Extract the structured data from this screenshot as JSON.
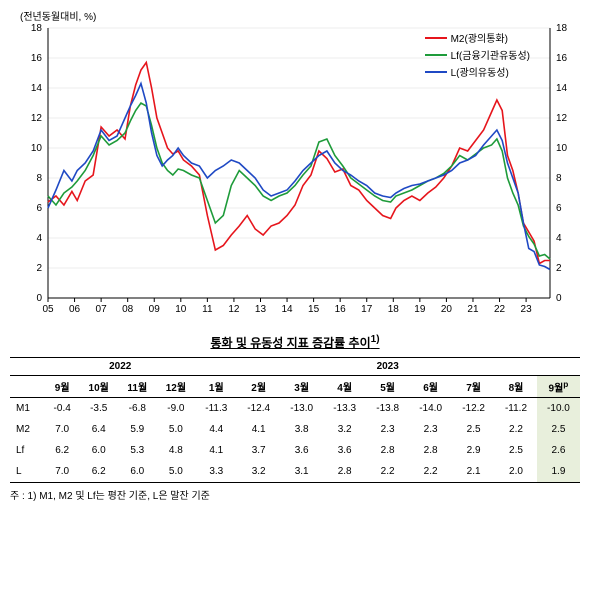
{
  "chart": {
    "y_title": "(전년동월대비, %)",
    "type": "line",
    "xlim": [
      2005,
      2023.9
    ],
    "ylim": [
      0,
      18
    ],
    "ytick_step": 2,
    "x_labels": [
      "05",
      "06",
      "07",
      "08",
      "09",
      "10",
      "11",
      "12",
      "13",
      "14",
      "15",
      "16",
      "17",
      "18",
      "19",
      "20",
      "21",
      "22",
      "23"
    ],
    "background_color": "#ffffff",
    "grid_color": "#d9d9d9",
    "axis_color": "#000000",
    "tick_fontsize": 10,
    "legend": {
      "items": [
        {
          "label": "M2(광의통화)",
          "color": "#e6151c"
        },
        {
          "label": "Lf(금융기관유동성)",
          "color": "#1e9b3a"
        },
        {
          "label": "L(광의유동성)",
          "color": "#1f49c4"
        }
      ]
    },
    "series": [
      {
        "name": "M2",
        "color": "#e6151c",
        "width": 1.6,
        "points": [
          [
            2005.0,
            6.4
          ],
          [
            2005.3,
            6.8
          ],
          [
            2005.6,
            6.2
          ],
          [
            2005.9,
            7.1
          ],
          [
            2006.1,
            6.5
          ],
          [
            2006.4,
            7.8
          ],
          [
            2006.7,
            8.2
          ],
          [
            2007.0,
            11.4
          ],
          [
            2007.3,
            10.8
          ],
          [
            2007.6,
            11.2
          ],
          [
            2007.9,
            10.6
          ],
          [
            2008.1,
            12.8
          ],
          [
            2008.3,
            14.2
          ],
          [
            2008.5,
            15.2
          ],
          [
            2008.7,
            15.7
          ],
          [
            2008.9,
            14.0
          ],
          [
            2009.1,
            12.0
          ],
          [
            2009.3,
            11.0
          ],
          [
            2009.5,
            10.0
          ],
          [
            2009.7,
            9.6
          ],
          [
            2009.9,
            9.8
          ],
          [
            2010.1,
            9.2
          ],
          [
            2010.4,
            8.8
          ],
          [
            2010.7,
            8.2
          ],
          [
            2011.0,
            5.5
          ],
          [
            2011.3,
            3.2
          ],
          [
            2011.6,
            3.5
          ],
          [
            2011.9,
            4.2
          ],
          [
            2012.2,
            4.8
          ],
          [
            2012.5,
            5.5
          ],
          [
            2012.8,
            4.6
          ],
          [
            2013.1,
            4.2
          ],
          [
            2013.4,
            4.8
          ],
          [
            2013.7,
            5.0
          ],
          [
            2014.0,
            5.5
          ],
          [
            2014.3,
            6.2
          ],
          [
            2014.6,
            7.5
          ],
          [
            2014.9,
            8.2
          ],
          [
            2015.2,
            9.8
          ],
          [
            2015.5,
            9.3
          ],
          [
            2015.8,
            8.4
          ],
          [
            2016.1,
            8.6
          ],
          [
            2016.4,
            7.5
          ],
          [
            2016.7,
            7.2
          ],
          [
            2017.0,
            6.5
          ],
          [
            2017.3,
            6.0
          ],
          [
            2017.6,
            5.5
          ],
          [
            2017.9,
            5.3
          ],
          [
            2018.1,
            6.0
          ],
          [
            2018.4,
            6.5
          ],
          [
            2018.7,
            6.8
          ],
          [
            2019.0,
            6.5
          ],
          [
            2019.3,
            7.0
          ],
          [
            2019.6,
            7.4
          ],
          [
            2019.9,
            8.0
          ],
          [
            2020.2,
            8.8
          ],
          [
            2020.5,
            10.0
          ],
          [
            2020.8,
            9.8
          ],
          [
            2021.1,
            10.5
          ],
          [
            2021.4,
            11.2
          ],
          [
            2021.7,
            12.4
          ],
          [
            2021.9,
            13.2
          ],
          [
            2022.1,
            12.5
          ],
          [
            2022.3,
            9.5
          ],
          [
            2022.5,
            8.5
          ],
          [
            2022.7,
            7.0
          ],
          [
            2022.9,
            5.0
          ],
          [
            2023.1,
            4.4
          ],
          [
            2023.3,
            3.8
          ],
          [
            2023.5,
            2.3
          ],
          [
            2023.7,
            2.5
          ],
          [
            2023.9,
            2.5
          ]
        ]
      },
      {
        "name": "Lf",
        "color": "#1e9b3a",
        "width": 1.6,
        "points": [
          [
            2005.0,
            6.8
          ],
          [
            2005.3,
            6.2
          ],
          [
            2005.6,
            7.0
          ],
          [
            2005.9,
            7.4
          ],
          [
            2006.1,
            7.8
          ],
          [
            2006.4,
            8.5
          ],
          [
            2006.7,
            9.5
          ],
          [
            2007.0,
            10.8
          ],
          [
            2007.3,
            10.2
          ],
          [
            2007.6,
            10.5
          ],
          [
            2007.9,
            11.0
          ],
          [
            2008.1,
            11.8
          ],
          [
            2008.3,
            12.5
          ],
          [
            2008.5,
            13.0
          ],
          [
            2008.7,
            12.8
          ],
          [
            2008.9,
            11.5
          ],
          [
            2009.1,
            10.0
          ],
          [
            2009.3,
            9.0
          ],
          [
            2009.5,
            8.5
          ],
          [
            2009.7,
            8.2
          ],
          [
            2009.9,
            8.6
          ],
          [
            2010.1,
            8.5
          ],
          [
            2010.4,
            8.2
          ],
          [
            2010.7,
            8.0
          ],
          [
            2011.0,
            6.5
          ],
          [
            2011.3,
            5.0
          ],
          [
            2011.6,
            5.5
          ],
          [
            2011.9,
            7.5
          ],
          [
            2012.2,
            8.5
          ],
          [
            2012.5,
            8.0
          ],
          [
            2012.8,
            7.5
          ],
          [
            2013.1,
            6.8
          ],
          [
            2013.4,
            6.5
          ],
          [
            2013.7,
            6.8
          ],
          [
            2014.0,
            7.0
          ],
          [
            2014.3,
            7.5
          ],
          [
            2014.6,
            8.2
          ],
          [
            2014.9,
            8.8
          ],
          [
            2015.2,
            10.4
          ],
          [
            2015.5,
            10.6
          ],
          [
            2015.8,
            9.5
          ],
          [
            2016.1,
            8.8
          ],
          [
            2016.4,
            8.0
          ],
          [
            2016.7,
            7.6
          ],
          [
            2017.0,
            7.2
          ],
          [
            2017.3,
            6.8
          ],
          [
            2017.6,
            6.5
          ],
          [
            2017.9,
            6.4
          ],
          [
            2018.1,
            6.8
          ],
          [
            2018.4,
            7.0
          ],
          [
            2018.7,
            7.2
          ],
          [
            2019.0,
            7.5
          ],
          [
            2019.3,
            7.8
          ],
          [
            2019.6,
            8.0
          ],
          [
            2019.9,
            8.3
          ],
          [
            2020.2,
            8.8
          ],
          [
            2020.5,
            9.5
          ],
          [
            2020.8,
            9.2
          ],
          [
            2021.1,
            9.6
          ],
          [
            2021.4,
            10.0
          ],
          [
            2021.7,
            10.2
          ],
          [
            2021.9,
            10.6
          ],
          [
            2022.1,
            9.8
          ],
          [
            2022.3,
            8.0
          ],
          [
            2022.5,
            7.0
          ],
          [
            2022.7,
            6.2
          ],
          [
            2022.9,
            4.8
          ],
          [
            2023.1,
            4.1
          ],
          [
            2023.3,
            3.6
          ],
          [
            2023.5,
            2.8
          ],
          [
            2023.7,
            2.9
          ],
          [
            2023.9,
            2.6
          ]
        ]
      },
      {
        "name": "L",
        "color": "#1f49c4",
        "width": 1.6,
        "points": [
          [
            2005.0,
            6.0
          ],
          [
            2005.3,
            7.2
          ],
          [
            2005.6,
            8.5
          ],
          [
            2005.9,
            7.8
          ],
          [
            2006.1,
            8.5
          ],
          [
            2006.4,
            9.0
          ],
          [
            2006.7,
            9.8
          ],
          [
            2007.0,
            11.2
          ],
          [
            2007.3,
            10.5
          ],
          [
            2007.6,
            10.8
          ],
          [
            2007.9,
            12.0
          ],
          [
            2008.1,
            12.8
          ],
          [
            2008.3,
            13.5
          ],
          [
            2008.5,
            14.3
          ],
          [
            2008.7,
            13.0
          ],
          [
            2008.9,
            11.0
          ],
          [
            2009.1,
            9.5
          ],
          [
            2009.3,
            8.8
          ],
          [
            2009.5,
            9.2
          ],
          [
            2009.7,
            9.5
          ],
          [
            2009.9,
            10.0
          ],
          [
            2010.1,
            9.5
          ],
          [
            2010.4,
            9.0
          ],
          [
            2010.7,
            8.8
          ],
          [
            2011.0,
            8.0
          ],
          [
            2011.3,
            8.5
          ],
          [
            2011.6,
            8.8
          ],
          [
            2011.9,
            9.2
          ],
          [
            2012.2,
            9.0
          ],
          [
            2012.5,
            8.5
          ],
          [
            2012.8,
            8.0
          ],
          [
            2013.1,
            7.2
          ],
          [
            2013.4,
            6.8
          ],
          [
            2013.7,
            7.0
          ],
          [
            2014.0,
            7.2
          ],
          [
            2014.3,
            7.8
          ],
          [
            2014.6,
            8.5
          ],
          [
            2014.9,
            9.0
          ],
          [
            2015.2,
            9.5
          ],
          [
            2015.5,
            9.8
          ],
          [
            2015.8,
            9.0
          ],
          [
            2016.1,
            8.5
          ],
          [
            2016.4,
            8.2
          ],
          [
            2016.7,
            7.8
          ],
          [
            2017.0,
            7.5
          ],
          [
            2017.3,
            7.0
          ],
          [
            2017.6,
            6.8
          ],
          [
            2017.9,
            6.7
          ],
          [
            2018.1,
            7.0
          ],
          [
            2018.4,
            7.3
          ],
          [
            2018.7,
            7.5
          ],
          [
            2019.0,
            7.6
          ],
          [
            2019.3,
            7.8
          ],
          [
            2019.6,
            8.0
          ],
          [
            2019.9,
            8.2
          ],
          [
            2020.2,
            8.5
          ],
          [
            2020.5,
            9.0
          ],
          [
            2020.8,
            9.2
          ],
          [
            2021.1,
            9.5
          ],
          [
            2021.4,
            10.2
          ],
          [
            2021.7,
            10.8
          ],
          [
            2021.9,
            11.2
          ],
          [
            2022.1,
            10.5
          ],
          [
            2022.3,
            9.0
          ],
          [
            2022.5,
            8.0
          ],
          [
            2022.7,
            7.0
          ],
          [
            2022.9,
            5.0
          ],
          [
            2023.1,
            3.3
          ],
          [
            2023.3,
            3.1
          ],
          [
            2023.5,
            2.2
          ],
          [
            2023.7,
            2.1
          ],
          [
            2023.9,
            1.9
          ]
        ]
      }
    ]
  },
  "table": {
    "title": "통화 및 유동성 지표 증감률 추이",
    "title_sup": "1)",
    "years": [
      {
        "label": "2022",
        "span": 4
      },
      {
        "label": "2023",
        "span": 9
      }
    ],
    "months": [
      "9월",
      "10월",
      "11월",
      "12월",
      "1월",
      "2월",
      "3월",
      "4월",
      "5월",
      "6월",
      "7월",
      "8월",
      "9월"
    ],
    "month_last_sup": "p",
    "highlight_last": true,
    "rows": [
      {
        "label": "M1",
        "values": [
          "-0.4",
          "-3.5",
          "-6.8",
          "-9.0",
          "-11.3",
          "-12.4",
          "-13.0",
          "-13.3",
          "-13.8",
          "-14.0",
          "-12.2",
          "-11.2",
          "-10.0"
        ]
      },
      {
        "label": "M2",
        "values": [
          "7.0",
          "6.4",
          "5.9",
          "5.0",
          "4.4",
          "4.1",
          "3.8",
          "3.2",
          "2.3",
          "2.3",
          "2.5",
          "2.2",
          "2.5"
        ]
      },
      {
        "label": "Lf",
        "values": [
          "6.2",
          "6.0",
          "5.3",
          "4.8",
          "4.1",
          "3.7",
          "3.6",
          "3.6",
          "2.8",
          "2.8",
          "2.9",
          "2.5",
          "2.6"
        ]
      },
      {
        "label": "L",
        "values": [
          "7.0",
          "6.2",
          "6.0",
          "5.0",
          "3.3",
          "3.2",
          "3.1",
          "2.8",
          "2.2",
          "2.2",
          "2.1",
          "2.0",
          "1.9"
        ]
      }
    ]
  },
  "footnote": "주 : 1) M1, M2 및 Lf는 평잔 기준, L은 말잔 기준"
}
